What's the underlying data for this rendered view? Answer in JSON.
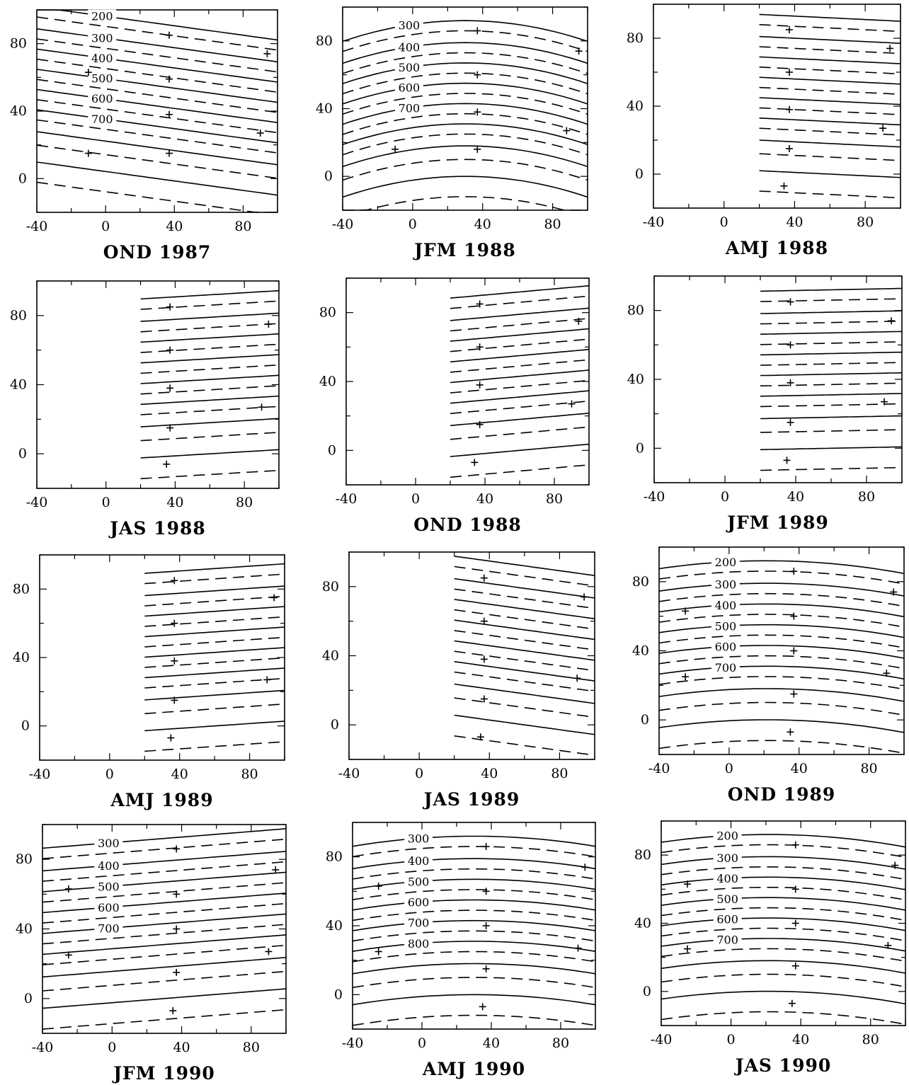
{
  "chart_data": [
    {
      "type": "contour",
      "title": "OND 1987",
      "xticks": [
        "-40",
        "0",
        "40",
        "80"
      ],
      "yticks": [
        "0",
        "40",
        "80"
      ],
      "xlim": [
        -40,
        100
      ],
      "ylim": [
        -20,
        100
      ],
      "data_start_x": -40,
      "contour_labels": [
        "200",
        "300",
        "400",
        "500",
        "600",
        "700"
      ],
      "points": [
        [
          37,
          85
        ],
        [
          94,
          74
        ],
        [
          -10,
          63
        ],
        [
          37,
          59
        ],
        [
          37,
          38
        ],
        [
          90,
          27
        ],
        [
          37,
          15
        ],
        [
          -10,
          15
        ]
      ]
    },
    {
      "type": "contour",
      "title": "JFM 1988",
      "xticks": [
        "-40",
        "0",
        "40",
        "80"
      ],
      "yticks": [
        "0",
        "40",
        "80"
      ],
      "xlim": [
        -40,
        100
      ],
      "ylim": [
        -20,
        100
      ],
      "data_start_x": -40,
      "contour_labels": [
        "300",
        "400",
        "500",
        "600",
        "700"
      ],
      "points": [
        [
          37,
          86
        ],
        [
          95,
          74
        ],
        [
          37,
          60
        ],
        [
          37,
          38
        ],
        [
          88,
          27
        ],
        [
          -10,
          16
        ],
        [
          37,
          16
        ]
      ]
    },
    {
      "type": "contour",
      "title": "AMJ 1988",
      "xticks": [
        "-40",
        "0",
        "40",
        "80"
      ],
      "yticks": [
        "0",
        "40",
        "80"
      ],
      "xlim": [
        -40,
        100
      ],
      "ylim": [
        -20,
        100
      ],
      "data_start_x": 20,
      "contour_labels": [],
      "points": [
        [
          37,
          85
        ],
        [
          94,
          74
        ],
        [
          37,
          60
        ],
        [
          37,
          38
        ],
        [
          90,
          27
        ],
        [
          37,
          15
        ],
        [
          34,
          -7
        ]
      ]
    },
    {
      "type": "contour",
      "title": "JAS 1988",
      "xticks": [
        "-40",
        "0",
        "40",
        "80"
      ],
      "yticks": [
        "0",
        "40",
        "80"
      ],
      "xlim": [
        -40,
        100
      ],
      "ylim": [
        -20,
        100
      ],
      "data_start_x": 20,
      "contour_labels": [],
      "points": [
        [
          37,
          85
        ],
        [
          94,
          75
        ],
        [
          37,
          60
        ],
        [
          37,
          38
        ],
        [
          90,
          27
        ],
        [
          37,
          15
        ],
        [
          35,
          -6
        ]
      ]
    },
    {
      "type": "contour",
      "title": "OND 1988",
      "xticks": [
        "-40",
        "0",
        "40",
        "80"
      ],
      "yticks": [
        "0",
        "40",
        "80"
      ],
      "xlim": [
        -40,
        100
      ],
      "ylim": [
        -20,
        100
      ],
      "data_start_x": 20,
      "contour_labels": [],
      "points": [
        [
          37,
          85
        ],
        [
          94,
          75
        ],
        [
          37,
          60
        ],
        [
          37,
          38
        ],
        [
          90,
          27
        ],
        [
          37,
          15
        ],
        [
          34,
          -7
        ]
      ]
    },
    {
      "type": "contour",
      "title": "JFM 1989",
      "xticks": [
        "-40",
        "0",
        "40",
        "80"
      ],
      "yticks": [
        "0",
        "40",
        "80"
      ],
      "xlim": [
        -40,
        100
      ],
      "ylim": [
        -20,
        100
      ],
      "data_start_x": 20,
      "contour_labels": [],
      "points": [
        [
          37,
          85
        ],
        [
          94,
          74
        ],
        [
          37,
          60
        ],
        [
          37,
          38
        ],
        [
          90,
          27
        ],
        [
          37,
          15
        ],
        [
          35,
          -7
        ]
      ]
    },
    {
      "type": "contour",
      "title": "AMJ 1989",
      "xticks": [
        "-40",
        "0",
        "40",
        "80"
      ],
      "yticks": [
        "0",
        "40",
        "80"
      ],
      "xlim": [
        -40,
        100
      ],
      "ylim": [
        -20,
        100
      ],
      "data_start_x": 20,
      "contour_labels": [],
      "points": [
        [
          37,
          85
        ],
        [
          94,
          75
        ],
        [
          37,
          60
        ],
        [
          37,
          38
        ],
        [
          90,
          27
        ],
        [
          37,
          15
        ],
        [
          35,
          -7
        ]
      ]
    },
    {
      "type": "contour",
      "title": "JAS 1989",
      "xticks": [
        "-40",
        "0",
        "40",
        "80"
      ],
      "yticks": [
        "0",
        "40",
        "80"
      ],
      "xlim": [
        -40,
        100
      ],
      "ylim": [
        -20,
        100
      ],
      "data_start_x": 20,
      "contour_labels": [],
      "points": [
        [
          37,
          85
        ],
        [
          94,
          74
        ],
        [
          37,
          60
        ],
        [
          37,
          38
        ],
        [
          90,
          27
        ],
        [
          37,
          15
        ],
        [
          35,
          -7
        ]
      ]
    },
    {
      "type": "contour",
      "title": "OND 1989",
      "xticks": [
        "-40",
        "0",
        "40",
        "80"
      ],
      "yticks": [
        "0",
        "40",
        "80"
      ],
      "xlim": [
        -40,
        100
      ],
      "ylim": [
        -20,
        100
      ],
      "data_start_x": -40,
      "contour_labels": [
        "200",
        "300",
        "400",
        "500",
        "600",
        "700"
      ],
      "points": [
        [
          37,
          86
        ],
        [
          94,
          74
        ],
        [
          -25,
          63
        ],
        [
          37,
          60
        ],
        [
          37,
          40
        ],
        [
          -25,
          25
        ],
        [
          90,
          27
        ],
        [
          37,
          15
        ],
        [
          35,
          -7
        ]
      ]
    },
    {
      "type": "contour",
      "title": "JFM 1990",
      "xticks": [
        "-40",
        "0",
        "40",
        "80"
      ],
      "yticks": [
        "0",
        "40",
        "80"
      ],
      "xlim": [
        -40,
        100
      ],
      "ylim": [
        -20,
        100
      ],
      "data_start_x": -40,
      "contour_labels": [
        "300",
        "400",
        "500",
        "600",
        "700"
      ],
      "points": [
        [
          37,
          86
        ],
        [
          94,
          74
        ],
        [
          -25,
          63
        ],
        [
          37,
          60
        ],
        [
          37,
          40
        ],
        [
          -25,
          25
        ],
        [
          90,
          27
        ],
        [
          37,
          15
        ],
        [
          35,
          -7
        ]
      ]
    },
    {
      "type": "contour",
      "title": "AMJ 1990",
      "xticks": [
        "-40",
        "0",
        "40",
        "80"
      ],
      "yticks": [
        "0",
        "40",
        "80"
      ],
      "xlim": [
        -40,
        100
      ],
      "ylim": [
        -20,
        100
      ],
      "data_start_x": -40,
      "contour_labels": [
        "300",
        "400",
        "500",
        "600",
        "700",
        "800"
      ],
      "points": [
        [
          37,
          86
        ],
        [
          94,
          74
        ],
        [
          -25,
          63
        ],
        [
          37,
          60
        ],
        [
          37,
          40
        ],
        [
          -25,
          25
        ],
        [
          90,
          27
        ],
        [
          37,
          15
        ],
        [
          35,
          -7
        ]
      ]
    },
    {
      "type": "contour",
      "title": "JAS 1990",
      "xticks": [
        "-40",
        "0",
        "40",
        "80"
      ],
      "yticks": [
        "0",
        "40",
        "80"
      ],
      "xlim": [
        -40,
        100
      ],
      "ylim": [
        -20,
        100
      ],
      "data_start_x": -40,
      "contour_labels": [
        "200",
        "300",
        "400",
        "500",
        "600",
        "700"
      ],
      "points": [
        [
          37,
          86
        ],
        [
          94,
          74
        ],
        [
          -25,
          63
        ],
        [
          37,
          60
        ],
        [
          37,
          40
        ],
        [
          -25,
          25
        ],
        [
          90,
          27
        ],
        [
          37,
          15
        ],
        [
          35,
          -7
        ]
      ]
    }
  ]
}
